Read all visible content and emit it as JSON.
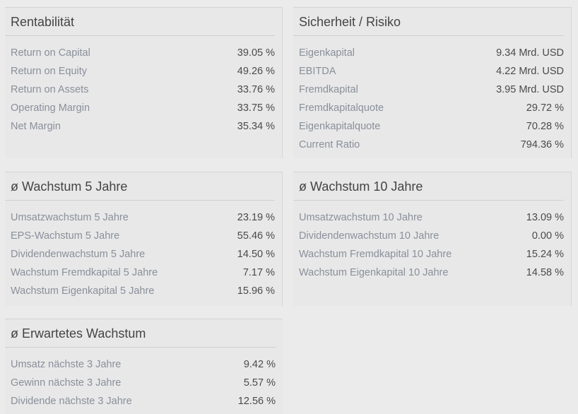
{
  "rentabilitaet": {
    "title": "Rentabilität",
    "rows": [
      {
        "label": "Return on Capital",
        "value": "39.05 %"
      },
      {
        "label": "Return on Equity",
        "value": "49.26 %"
      },
      {
        "label": "Return on Assets",
        "value": "33.76 %"
      },
      {
        "label": "Operating Margin",
        "value": "33.75 %"
      },
      {
        "label": "Net Margin",
        "value": "35.34 %"
      }
    ]
  },
  "sicherheit": {
    "title": "Sicherheit / Risiko",
    "rows": [
      {
        "label": "Eigenkapital",
        "value": "9.34 Mrd. USD"
      },
      {
        "label": "EBITDA",
        "value": "4.22 Mrd. USD"
      },
      {
        "label": "Fremdkapital",
        "value": "3.95 Mrd. USD"
      },
      {
        "label": "Fremdkapitalquote",
        "value": "29.72 %"
      },
      {
        "label": "Eigenkapitalquote",
        "value": "70.28 %"
      },
      {
        "label": "Current Ratio",
        "value": "794.36 %"
      }
    ]
  },
  "wachstum5": {
    "title": "ø Wachstum 5 Jahre",
    "rows": [
      {
        "label": "Umsatzwachstum 5 Jahre",
        "value": "23.19 %"
      },
      {
        "label": "EPS-Wachstum 5 Jahre",
        "value": "55.46 %"
      },
      {
        "label": "Dividendenwachstum 5 Jahre",
        "value": "14.50 %"
      },
      {
        "label": "Wachstum Fremdkapital 5 Jahre",
        "value": "7.17 %"
      },
      {
        "label": "Wachstum Eigenkapital 5 Jahre",
        "value": "15.96 %"
      }
    ]
  },
  "wachstum10": {
    "title": "ø Wachstum 10 Jahre",
    "rows": [
      {
        "label": "Umsatzwachstum 10 Jahre",
        "value": "13.09 %"
      },
      {
        "label": "Dividendenwachstum 10 Jahre",
        "value": "0.00 %"
      },
      {
        "label": "Wachstum Fremdkapital 10 Jahre",
        "value": "15.24 %"
      },
      {
        "label": "Wachstum Eigenkapital 10 Jahre",
        "value": "14.58 %"
      }
    ]
  },
  "erwartet": {
    "title": "ø Erwartetes Wachstum",
    "rows": [
      {
        "label": "Umsatz nächste 3 Jahre",
        "value": "9.42 %"
      },
      {
        "label": "Gewinn nächste 3 Jahre",
        "value": "5.57 %"
      },
      {
        "label": "Dividende nächste 3 Jahre",
        "value": "12.56 %"
      }
    ]
  }
}
